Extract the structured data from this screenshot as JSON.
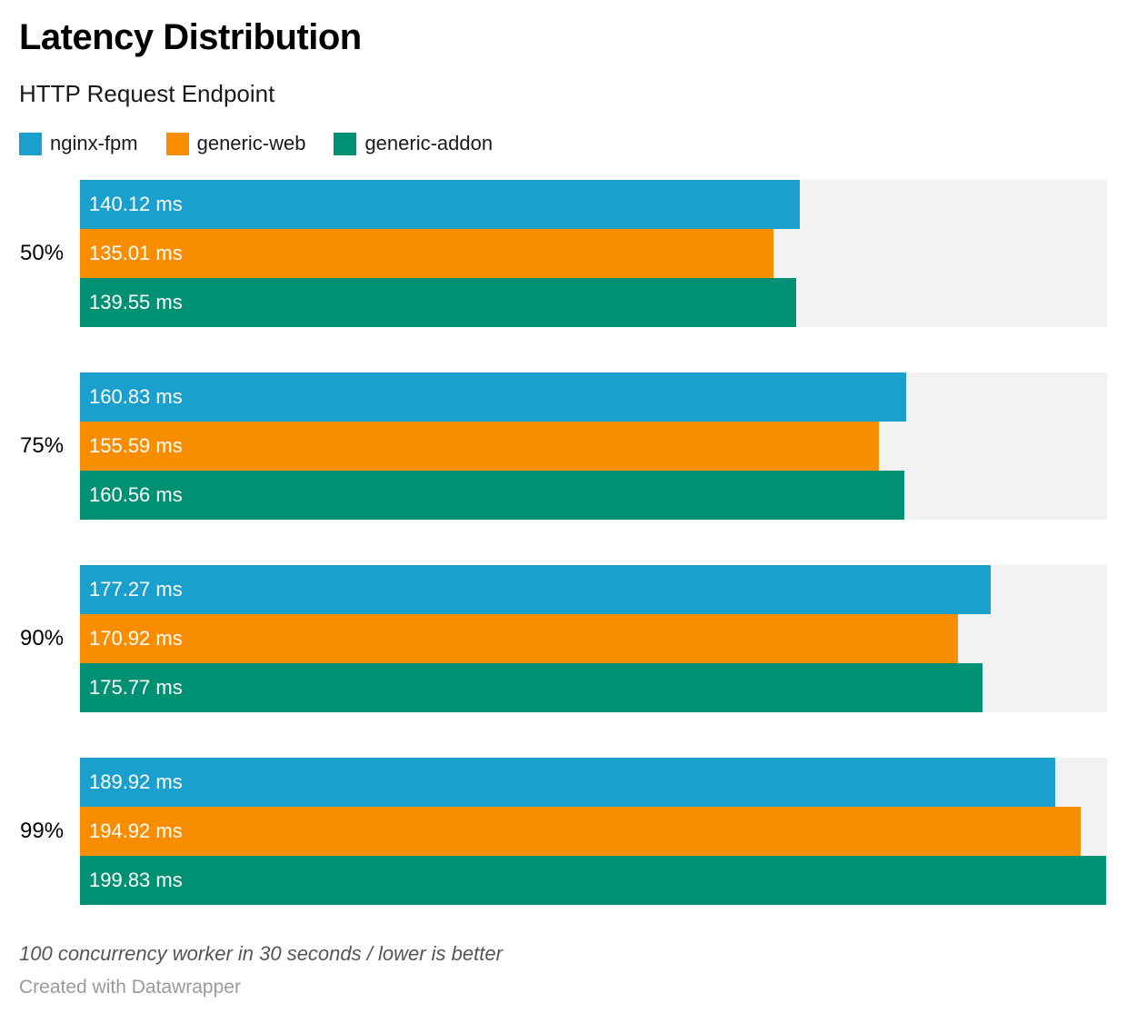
{
  "header": {
    "title": "Latency Distribution",
    "subtitle": "HTTP Request Endpoint"
  },
  "footer": {
    "note": "100 concurrency worker in 30 seconds / lower is better",
    "attribution": "Created with Datawrapper"
  },
  "chart_data": {
    "type": "bar",
    "orientation": "horizontal",
    "title": "Latency Distribution",
    "subtitle": "HTTP Request Endpoint",
    "categories": [
      "50%",
      "75%",
      "90%",
      "99%"
    ],
    "series": [
      {
        "name": "nginx-fpm",
        "color": "#1ba0ce",
        "values": [
          140.12,
          160.83,
          177.27,
          189.92
        ]
      },
      {
        "name": "generic-web",
        "color": "#f98d00",
        "values": [
          135.01,
          155.59,
          170.92,
          194.92
        ]
      },
      {
        "name": "generic-addon",
        "color": "#009174",
        "values": [
          139.55,
          160.56,
          175.77,
          199.83
        ]
      }
    ],
    "value_suffix": " ms",
    "value_decimals": 2,
    "xlim": [
      0,
      200
    ],
    "grid": false,
    "legend_position": "top",
    "track_color": "#f2f2f2",
    "note": "100 concurrency worker in 30 seconds / lower is better",
    "attribution": "Created with Datawrapper"
  }
}
